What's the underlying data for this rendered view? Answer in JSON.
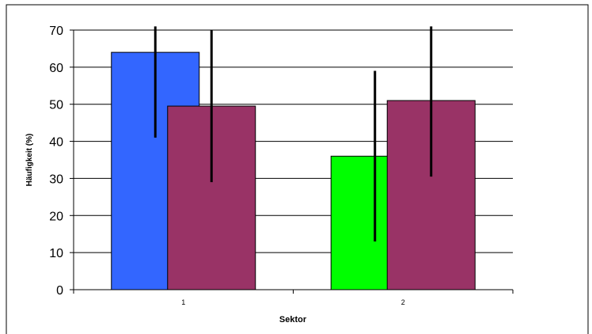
{
  "chart_data": {
    "type": "bar",
    "title": "",
    "xlabel": "Sektor",
    "ylabel": "Häufigkeit (%)",
    "ylim": [
      0,
      70
    ],
    "yticks": [
      0,
      10,
      20,
      30,
      40,
      50,
      60,
      70
    ],
    "grid": true,
    "legend": "none",
    "groups": [
      {
        "category": "1",
        "bars": [
          {
            "value": 64,
            "error_low": 41,
            "error_high": 71,
            "color": "#3366ff"
          },
          {
            "value": 49.5,
            "error_low": 29,
            "error_high": 70,
            "color": "#993366"
          }
        ]
      },
      {
        "category": "2",
        "bars": [
          {
            "value": 36,
            "error_low": 13,
            "error_high": 59,
            "color": "#00ff00"
          },
          {
            "value": 51,
            "error_low": 30.5,
            "error_high": 71,
            "color": "#993366"
          }
        ]
      }
    ]
  }
}
